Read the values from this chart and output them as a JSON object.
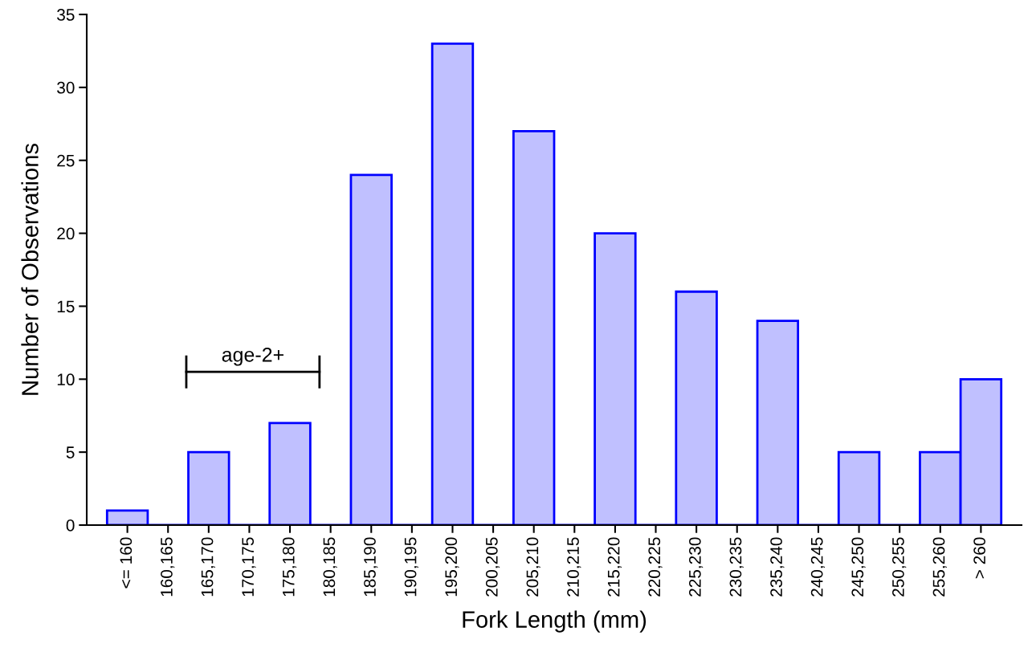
{
  "chart_data": {
    "type": "bar",
    "xlabel": "Fork Length (mm)",
    "ylabel": "Number of Observations",
    "categories": [
      "<= 160",
      "160,165",
      "165,170",
      "170,175",
      "175,180",
      "180,185",
      "185,190",
      "190,195",
      "195,200",
      "200,205",
      "205,210",
      "210,215",
      "215,220",
      "220,225",
      "225,230",
      "230,235",
      "235,240",
      "240,245",
      "245,250",
      "250,255",
      "255,260",
      "> 260"
    ],
    "values": [
      1,
      0,
      5,
      0,
      7,
      0,
      24,
      0,
      33,
      0,
      27,
      0,
      20,
      0,
      16,
      0,
      14,
      0,
      5,
      0,
      5,
      10
    ],
    "color": "#c0c0ff",
    "ylim": [
      0,
      35
    ],
    "yticks": [
      0,
      5,
      10,
      15,
      20,
      25,
      30,
      35
    ],
    "grid": false,
    "annotations": [
      "age-2+"
    ]
  }
}
